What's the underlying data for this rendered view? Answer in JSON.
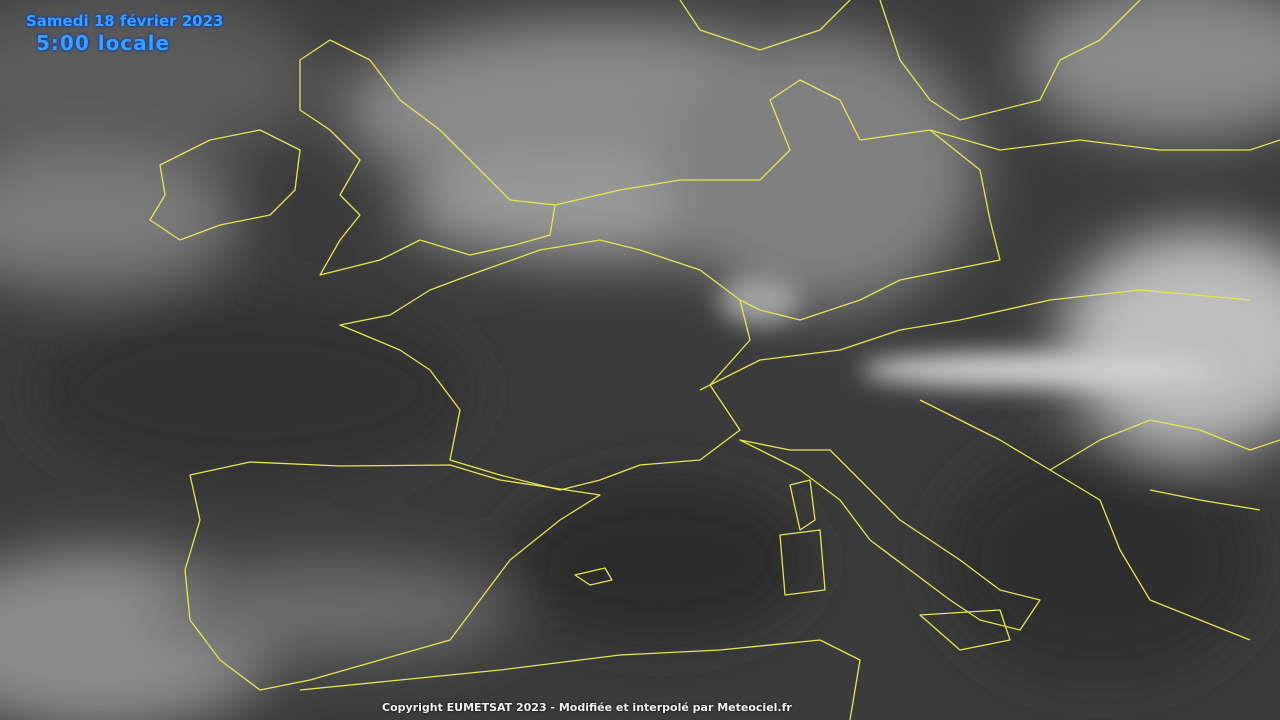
{
  "overlay": {
    "date": "Samedi 18 février 2023",
    "time": "5:00 locale",
    "copyright": "Copyright EUMETSAT 2023 - Modifiée et interpolé par Meteociel.fr"
  },
  "map": {
    "type": "infrared satellite image",
    "region": "Western Europe",
    "border_color": "#e6e650",
    "title_color": "#3aa0ff"
  }
}
